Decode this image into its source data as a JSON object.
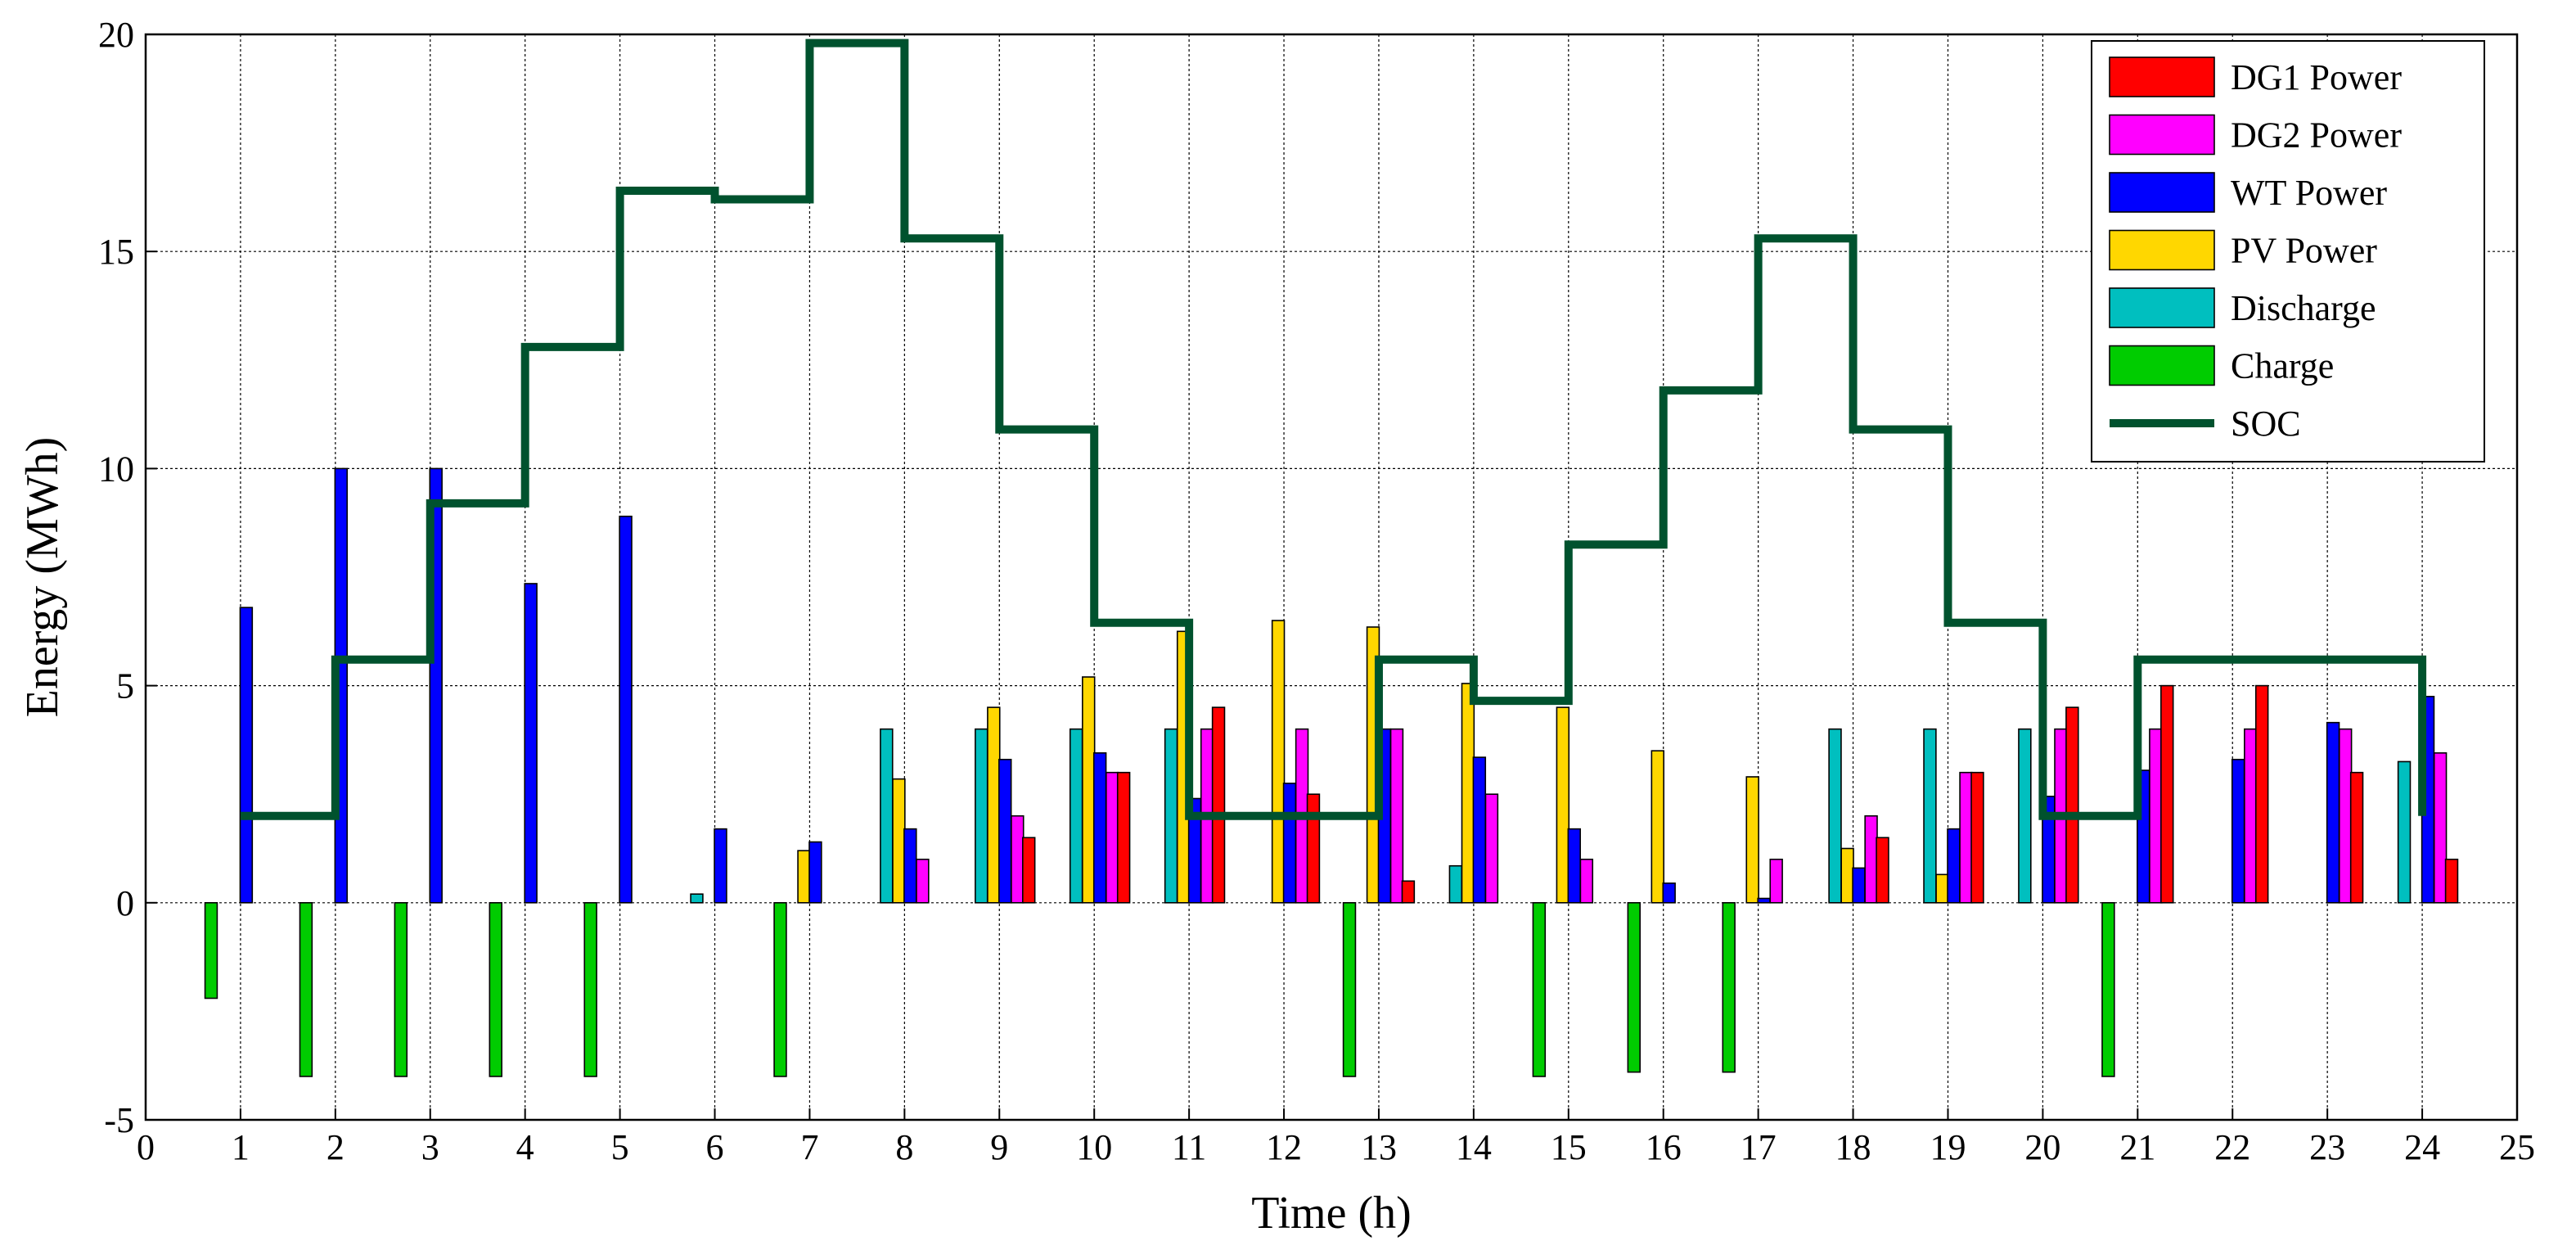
{
  "chart_data": {
    "type": "bar",
    "xlabel": "Time (h)",
    "ylabel": "Energy (MWh)",
    "xlim": [
      0,
      25
    ],
    "ylim": [
      -5,
      20
    ],
    "xticks": [
      "0",
      "1",
      "2",
      "3",
      "4",
      "5",
      "6",
      "7",
      "8",
      "9",
      "10",
      "11",
      "12",
      "13",
      "14",
      "15",
      "16",
      "17",
      "18",
      "19",
      "20",
      "21",
      "22",
      "23",
      "24",
      "25"
    ],
    "yticks": [
      "-5",
      "0",
      "5",
      "10",
      "15",
      "20"
    ],
    "grid": true,
    "legend_position": "top-right",
    "hours": [
      1,
      2,
      3,
      4,
      5,
      6,
      7,
      8,
      9,
      10,
      11,
      12,
      13,
      14,
      15,
      16,
      17,
      18,
      19,
      20,
      21,
      22,
      23,
      24
    ],
    "series": [
      {
        "name": "Charge",
        "color": "#00cc00",
        "values": [
          -2.2,
          -4,
          -4,
          -4,
          -4,
          0,
          -4,
          0,
          0,
          0,
          0,
          0,
          -4,
          0,
          -4,
          -3.9,
          -3.9,
          0,
          0,
          0,
          -4,
          0,
          0,
          0
        ]
      },
      {
        "name": "Discharge",
        "color": "#00bfbf",
        "values": [
          0,
          0,
          0,
          0,
          0,
          0.2,
          0,
          4,
          4,
          4,
          4,
          0,
          0,
          0.85,
          0,
          0,
          0,
          4,
          4,
          4,
          0,
          0,
          0,
          3.25
        ]
      },
      {
        "name": "PV Power",
        "color": "#ffd700",
        "values": [
          0,
          0,
          0,
          0,
          0,
          0,
          1.2,
          2.85,
          4.5,
          5.2,
          6.25,
          6.5,
          6.35,
          5.05,
          4.5,
          3.5,
          2.9,
          1.25,
          0.65,
          0,
          0,
          0,
          0,
          0
        ]
      },
      {
        "name": "WT Power",
        "color": "#0000ff",
        "values": [
          6.8,
          10,
          10,
          7.35,
          8.9,
          1.7,
          1.4,
          1.7,
          3.3,
          3.45,
          2.4,
          2.75,
          4,
          3.35,
          1.7,
          0.45,
          0.1,
          0.8,
          1.7,
          2.45,
          3.05,
          3.3,
          4.15,
          4.75
        ]
      },
      {
        "name": "DG2 Power",
        "color": "#ff00ff",
        "values": [
          0,
          0,
          0,
          0,
          0,
          0,
          0,
          1,
          2,
          3,
          4,
          4,
          4,
          2.5,
          1,
          0,
          1,
          2,
          3,
          4,
          4,
          4,
          4,
          3.45
        ]
      },
      {
        "name": "DG1 Power",
        "color": "#ff0000",
        "values": [
          0,
          0,
          0,
          0,
          0,
          0,
          0,
          0,
          1.5,
          3,
          4.5,
          2.5,
          0.5,
          0,
          0,
          0,
          0,
          1.5,
          3,
          4.5,
          5,
          5,
          3,
          1
        ]
      },
      {
        "name": "SOC",
        "color": "#00522e",
        "kind": "step",
        "values": [
          2,
          5.6,
          9.2,
          12.8,
          16.4,
          16.2,
          19.8,
          15.3,
          10.9,
          6.45,
          2,
          2,
          5.6,
          4.65,
          8.25,
          11.8,
          15.3,
          10.9,
          6.45,
          2,
          5.6,
          5.6,
          5.6,
          2
        ]
      }
    ],
    "legend_order": [
      "DG1 Power",
      "DG2 Power",
      "WT Power",
      "PV Power",
      "Discharge",
      "Charge",
      "SOC"
    ]
  }
}
